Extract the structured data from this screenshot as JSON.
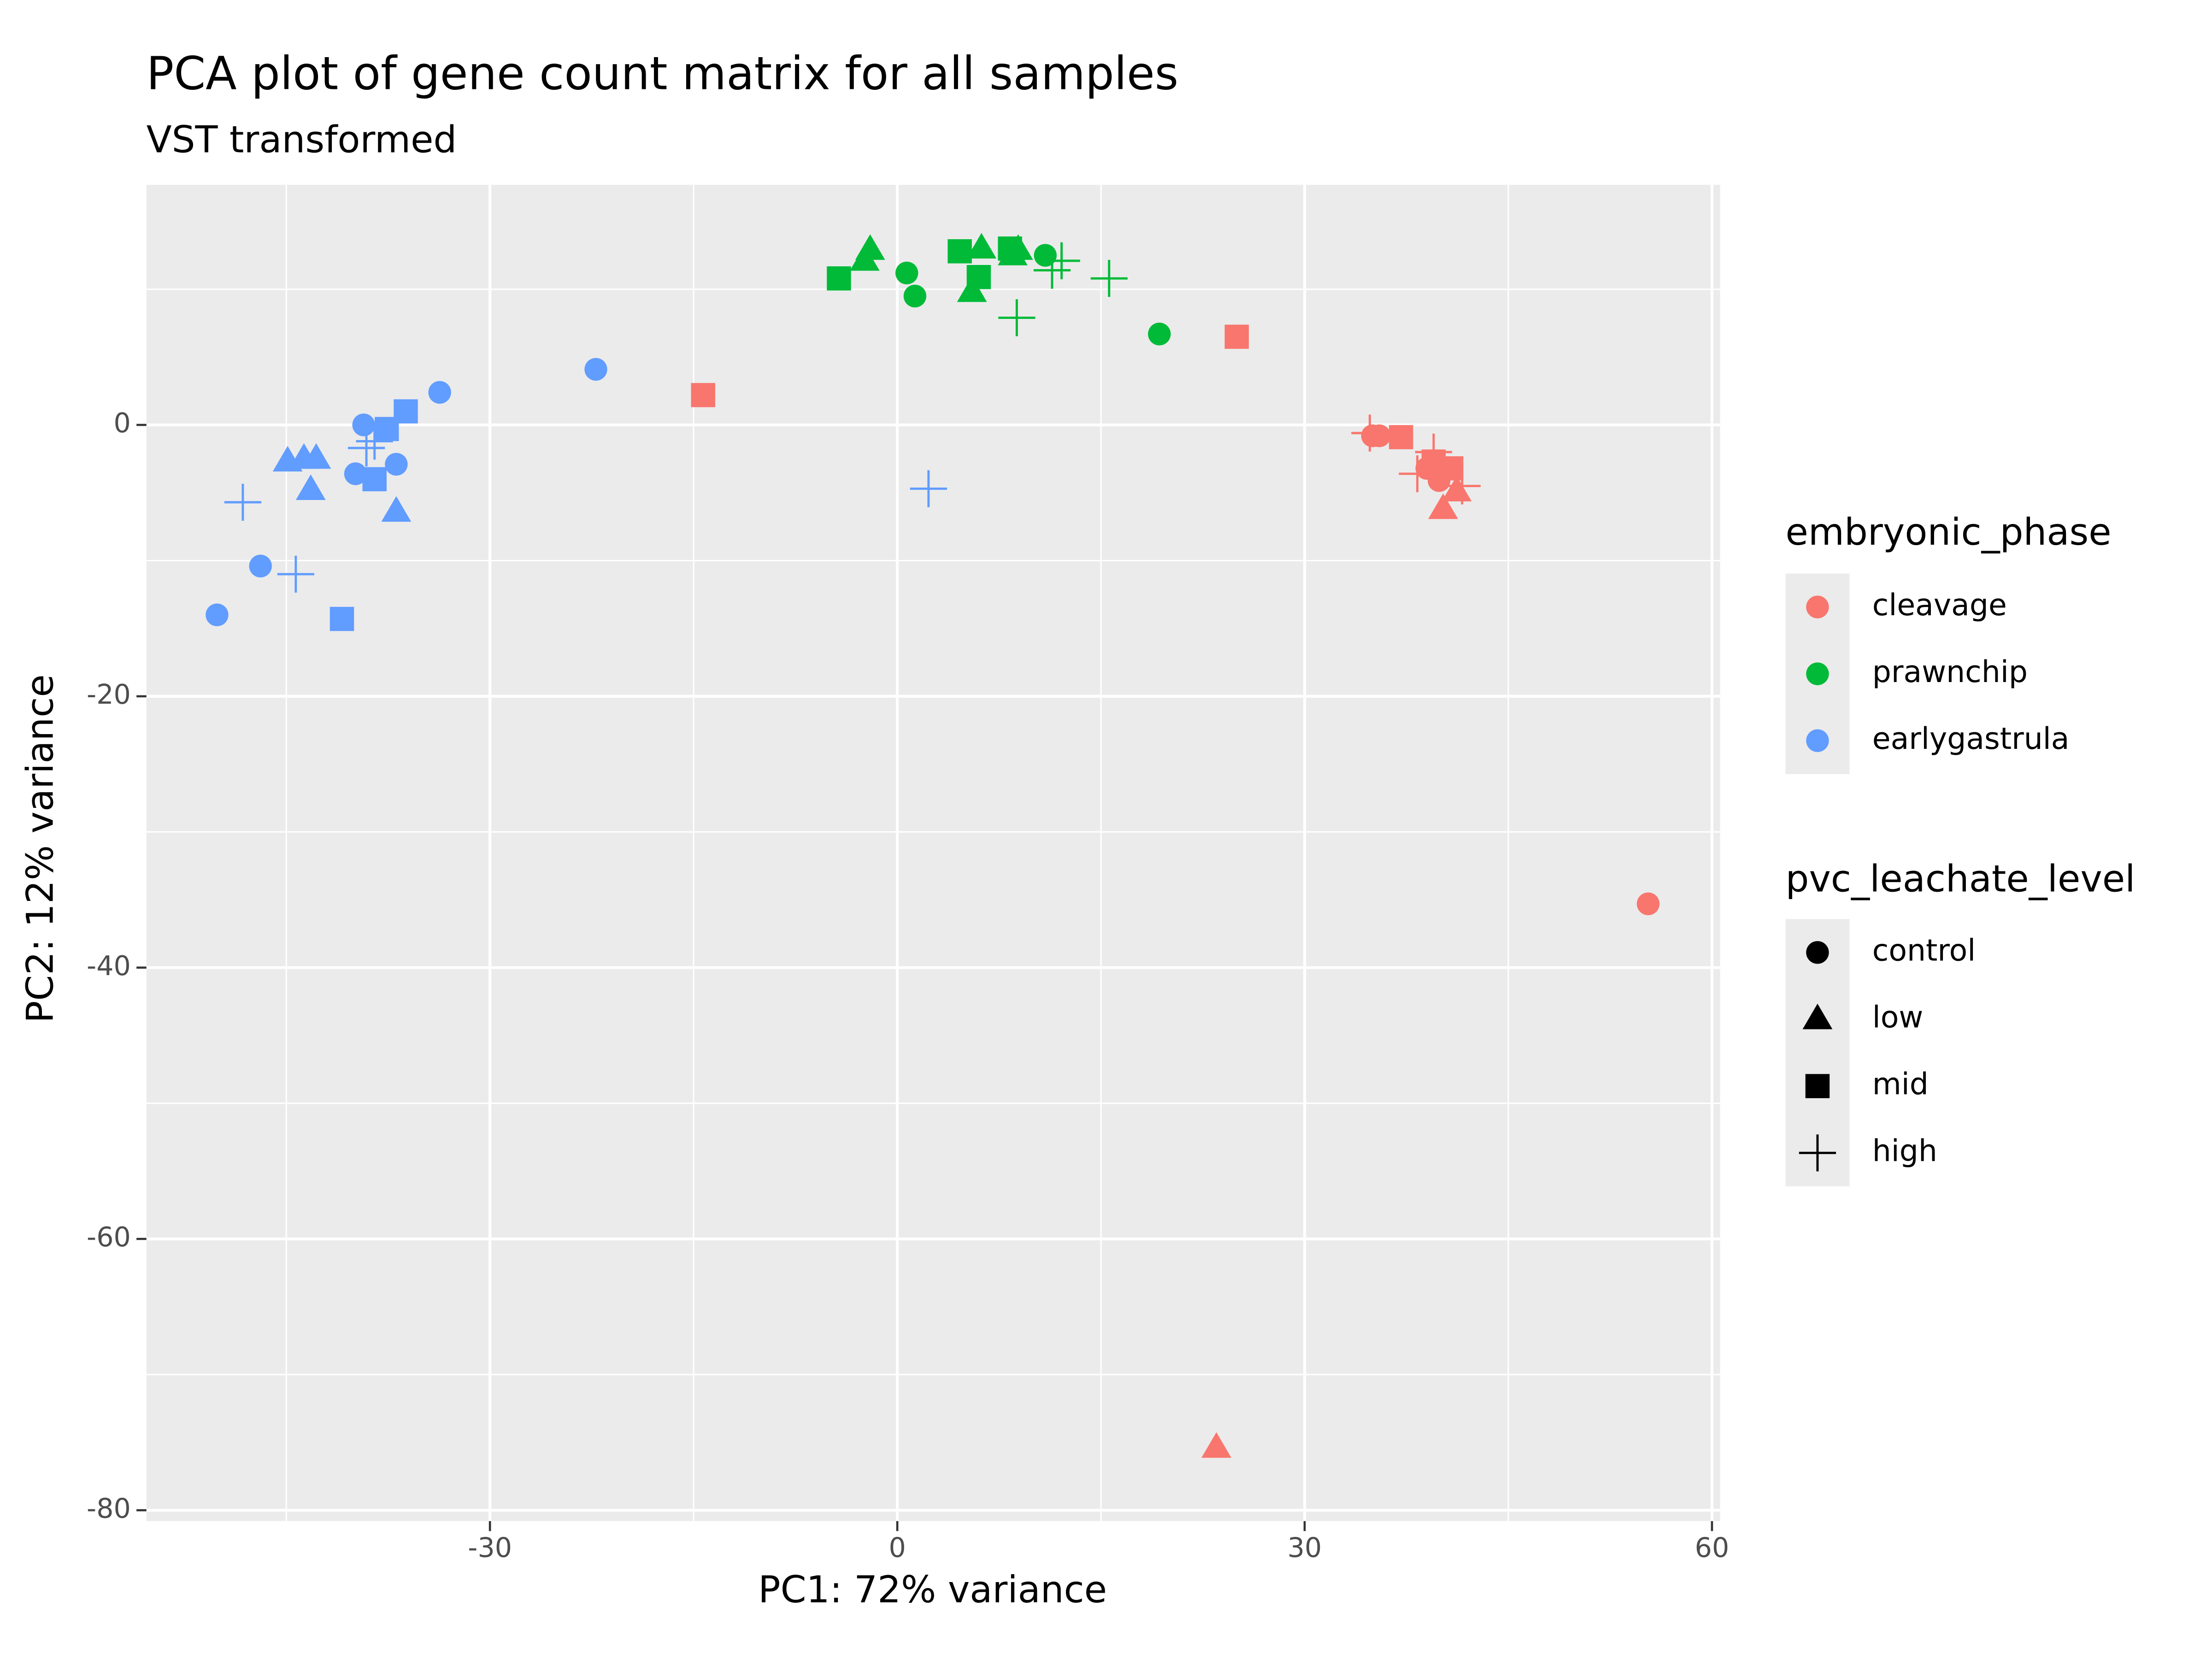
{
  "chart_data": {
    "type": "scatter",
    "title": "PCA plot of gene count matrix for all samples",
    "subtitle": "VST transformed",
    "x_label": "PC1: 72% variance",
    "y_label": "PC2: 12% variance",
    "xlim": [
      -55.3,
      60.6
    ],
    "ylim": [
      -80.8,
      17.7
    ],
    "xticks": [
      -30,
      0,
      30,
      60
    ],
    "yticks": [
      0,
      -20,
      -40,
      -60,
      -80
    ],
    "x_minor_grid": [
      -45,
      -15,
      15,
      45
    ],
    "y_minor_grid": [
      10,
      -10,
      -30,
      -50,
      -70
    ],
    "grid": true,
    "panel_color": "#ebebeb",
    "color_legend_title": "embryonic_phase",
    "shape_legend": {
      "title": "pvc_leachate_level",
      "items": [
        {
          "name": "control",
          "shape": "circle"
        },
        {
          "name": "low",
          "shape": "triangle"
        },
        {
          "name": "mid",
          "shape": "square"
        },
        {
          "name": "high",
          "shape": "cross"
        }
      ]
    },
    "series": [
      {
        "name": "cleavage",
        "color": "#F8766D",
        "x": [
          -14.3,
          25.0,
          55.3,
          23.5,
          35.0,
          35.5,
          34.8,
          37.1,
          39.5,
          39.5,
          40.8,
          39.0,
          39.9,
          40.2,
          41.2,
          38.3,
          41.6
        ],
        "values": [
          2.2,
          6.5,
          -35.3,
          -75.4,
          -0.8,
          -0.8,
          -0.6,
          -0.9,
          -2.7,
          -2.0,
          -3.2,
          -3.2,
          -4.1,
          -6.2,
          -4.9,
          -3.6,
          -4.5
        ],
        "levels": [
          "mid",
          "mid",
          "control",
          "low",
          "control",
          "control",
          "high",
          "mid",
          "mid",
          "high",
          "mid",
          "control",
          "control",
          "low",
          "low",
          "high",
          "high"
        ]
      },
      {
        "name": "prawnchip",
        "color": "#00BA38",
        "x": [
          -4.3,
          -2.4,
          -2.0,
          0.7,
          1.3,
          4.6,
          6.0,
          5.5,
          6.2,
          8.3,
          8.5,
          8.9,
          10.9,
          11.4,
          12.1,
          8.8,
          15.6,
          19.3
        ],
        "values": [
          10.8,
          12.1,
          12.9,
          11.2,
          9.5,
          12.8,
          10.9,
          9.8,
          13.0,
          13.0,
          12.5,
          12.9,
          12.5,
          11.4,
          12.1,
          7.9,
          10.8,
          6.7
        ],
        "levels": [
          "mid",
          "low",
          "low",
          "control",
          "control",
          "mid",
          "mid",
          "low",
          "low",
          "mid",
          "low",
          "low",
          "control",
          "high",
          "high",
          "high",
          "high",
          "control"
        ]
      },
      {
        "name": "earlygastrula",
        "color": "#619CFF",
        "x": [
          -22.2,
          -33.7,
          -36.2,
          -37.6,
          -39.3,
          -39.1,
          -38.5,
          -36.9,
          -39.9,
          -38.5,
          -36.9,
          -44.9,
          -43.7,
          -42.8,
          -43.2,
          -48.2,
          -46.9,
          -44.3,
          -50.1,
          -40.9,
          2.3
        ],
        "values": [
          4.1,
          2.4,
          1.0,
          -0.3,
          0,
          -1.7,
          -1.2,
          -2.9,
          -3.6,
          -4.0,
          -6.4,
          -2.7,
          -2.5,
          -2.5,
          -4.8,
          -5.7,
          -10.4,
          -11.0,
          -14.0,
          -14.3,
          -4.7
        ],
        "levels": [
          "control",
          "control",
          "mid",
          "mid",
          "control",
          "high",
          "high",
          "control",
          "control",
          "mid",
          "low",
          "low",
          "low",
          "low",
          "low",
          "high",
          "control",
          "high",
          "control",
          "mid",
          "high"
        ]
      }
    ]
  }
}
